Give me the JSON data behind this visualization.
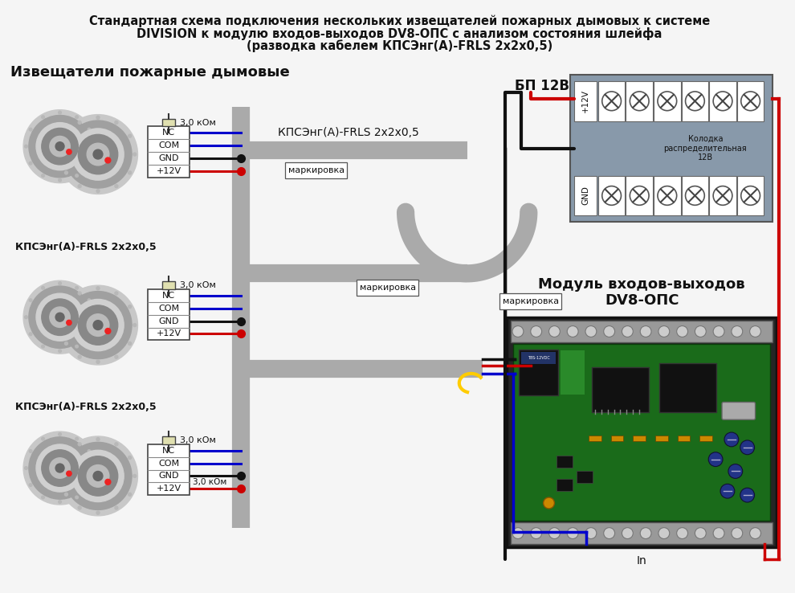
{
  "title_line1": "Стандартная схема подключения нескольких извещателей пожарных дымовых к системе",
  "title_line2": "DIVISION к модулю входов-выходов DV8-ОПС с анализом состояния шлейфа",
  "title_line3": "(разводка кабелем КПСЭнг(А)-FRLS 2х2х0,5)",
  "bg_color": "#f5f5f5",
  "label_izveschateli": "Извещатели пожарные дымовые",
  "label_kabel1": "КПСЭнг(А)-FRLS 2х2х0,5",
  "label_kabel2": "КПСЭнг(А)-FRLS 2х2х0,5",
  "label_kabel_main": "КПСЭнг(А)-FRLS 2х2х0,5",
  "label_markirovka": "маркировка",
  "label_bp": "БП 12В",
  "label_modul1": "Модуль входов-выходов",
  "label_modul2": "DV8-ОПС",
  "label_kolodka": "Колодка\nраспределительная\n12В",
  "label_plus12v": "+12V",
  "label_gnd": "GND",
  "label_resistor": "3,0 кОм",
  "label_resistor2": "3,0 кОм",
  "label_in": "In",
  "wire_black": "#111111",
  "wire_red": "#cc0000",
  "wire_blue": "#0000cc",
  "wire_yellow": "#ffcc00",
  "cable_gray": "#aaaaaa",
  "pcb_green": "#1a6b1a",
  "db_bg": "#8899aa"
}
